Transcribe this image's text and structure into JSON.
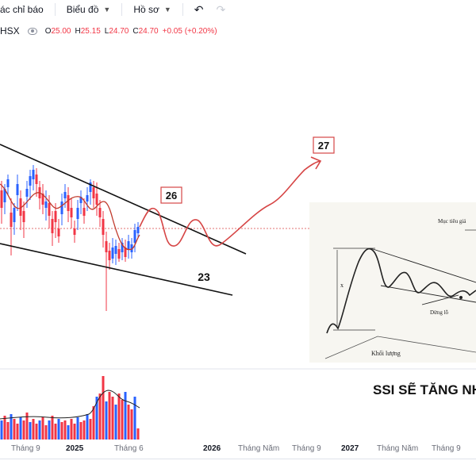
{
  "toolbar": {
    "indicators_label": "ác chỉ báo",
    "chart_label": "Biểu đồ",
    "profile_label": "Hồ sơ",
    "undo_icon": "undo-icon",
    "redo_icon": "redo-icon"
  },
  "symbol": {
    "exchange": "HSX",
    "open_label": "O",
    "open": "25.00",
    "high_label": "H",
    "high": "25.15",
    "low_label": "L",
    "low": "24.70",
    "close_label": "C",
    "close": "24.70",
    "change": "+0.05 (+0.20%)"
  },
  "annotations": {
    "target_27": "27",
    "resistance_26": "26",
    "support_23": "23",
    "headline": "SSI SẼ TĂNG NH"
  },
  "inset": {
    "target_label": "Mục tiêu giá",
    "x_label": "x",
    "stop_label": "Dừng lỗ",
    "volume_label": "Khối lượng"
  },
  "time_axis": [
    {
      "label": "Tháng 9",
      "is_year": false
    },
    {
      "label": "2025",
      "is_year": true
    },
    {
      "label": "Tháng 6",
      "is_year": false
    },
    {
      "label": "2026",
      "is_year": true
    },
    {
      "label": "Tháng Năm",
      "is_year": false
    },
    {
      "label": "Tháng 9",
      "is_year": false
    },
    {
      "label": "2027",
      "is_year": true
    },
    {
      "label": "Tháng Năm",
      "is_year": false
    },
    {
      "label": "Tháng 9",
      "is_year": false
    }
  ],
  "colors": {
    "up": "#2962ff",
    "down": "#f23645",
    "ma": "#c0392b",
    "projection": "#d64545"
  }
}
